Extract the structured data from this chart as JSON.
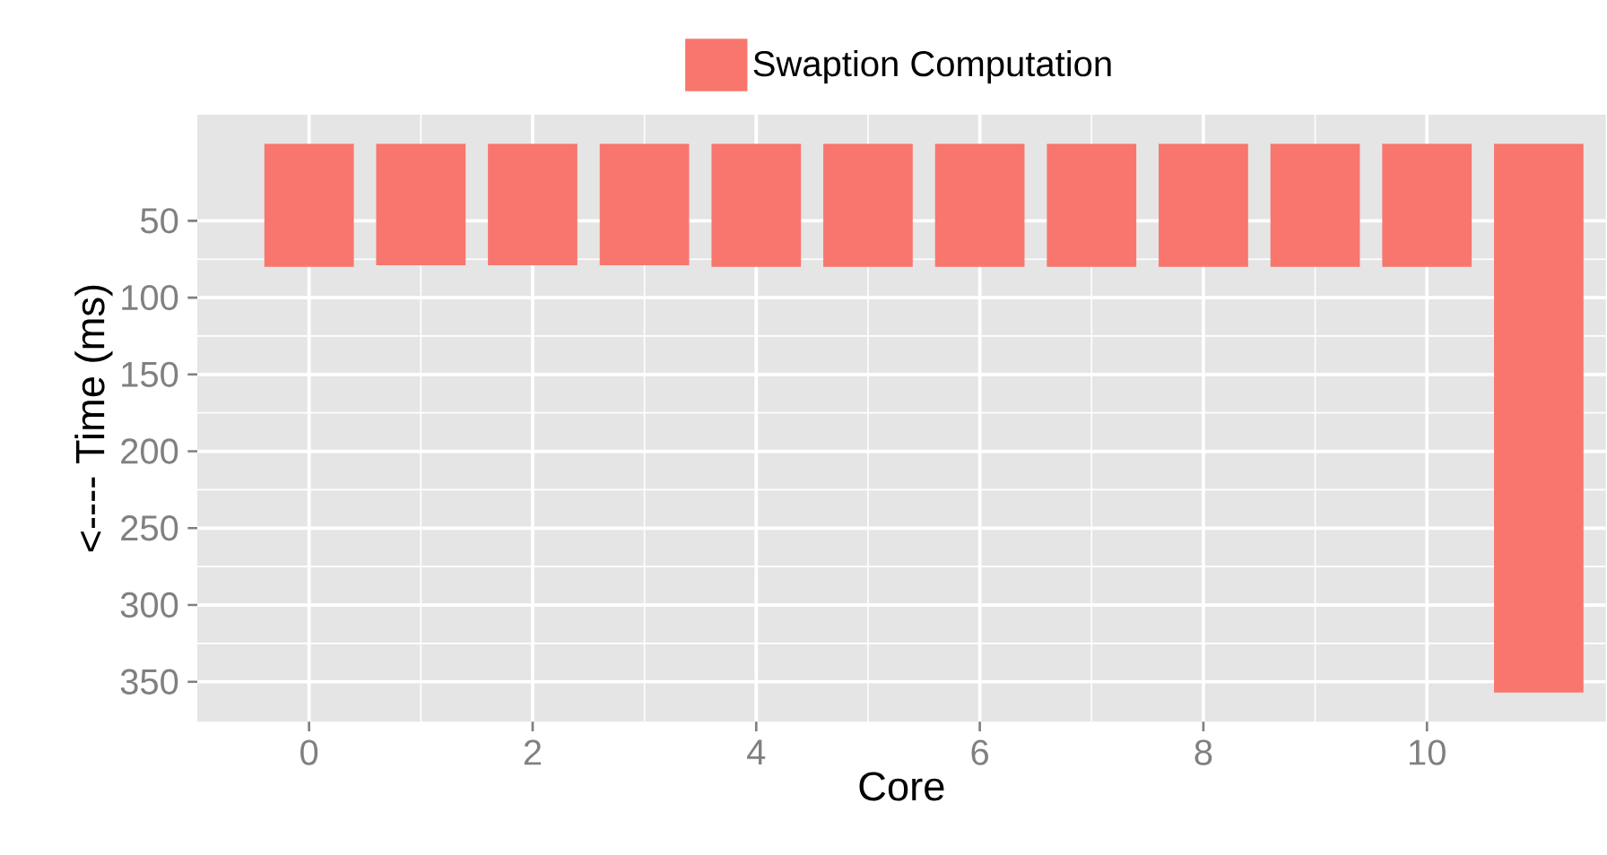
{
  "chart_data": {
    "type": "bar",
    "xlabel": "Core",
    "ylabel": "<---- Time (ms)",
    "x": [
      0,
      1,
      2,
      3,
      4,
      5,
      6,
      7,
      8,
      9,
      10,
      11
    ],
    "series": [
      {
        "name": "Swaption Computation",
        "color": "#f8766d",
        "values": [
          80,
          79,
          79,
          79,
          80,
          80,
          80,
          80,
          80,
          80,
          80,
          357
        ]
      }
    ],
    "xlim": [
      -1,
      11.6
    ],
    "ylim": [
      376,
      -19
    ],
    "xticks": [
      0,
      2,
      4,
      6,
      8,
      10
    ],
    "yticks": [
      50,
      100,
      150,
      200,
      250,
      300,
      350
    ],
    "grid": true,
    "legend": "top"
  }
}
